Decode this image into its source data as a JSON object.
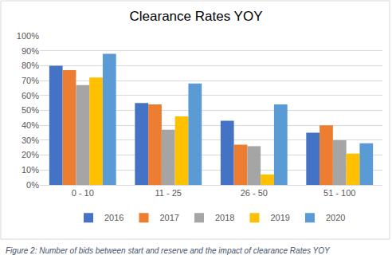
{
  "chart_data": {
    "type": "bar",
    "title": "Clearance Rates YOY",
    "caption": "Figure 2: Number of bids between start and reserve and the impact of clearance Rates YOY",
    "categories": [
      "0 - 10",
      "11 - 25",
      "26 - 50",
      "51 - 100"
    ],
    "series": [
      {
        "name": "2016",
        "color": "#4472c4",
        "values": [
          80,
          55,
          43,
          35
        ]
      },
      {
        "name": "2017",
        "color": "#ed7d31",
        "values": [
          77,
          54,
          27,
          40
        ]
      },
      {
        "name": "2018",
        "color": "#a5a5a5",
        "values": [
          67,
          37,
          26,
          30
        ]
      },
      {
        "name": "2019",
        "color": "#ffc000",
        "values": [
          72,
          46,
          7,
          21
        ]
      },
      {
        "name": "2020",
        "color": "#5b9bd5",
        "values": [
          88,
          68,
          54,
          28
        ]
      }
    ],
    "ylim": [
      0,
      100
    ],
    "yticks": [
      {
        "value": 0,
        "label": "0%"
      },
      {
        "value": 10,
        "label": "10%"
      },
      {
        "value": 20,
        "label": "20%"
      },
      {
        "value": 30,
        "label": "30%"
      },
      {
        "value": 40,
        "label": "40%"
      },
      {
        "value": 50,
        "label": "50%"
      },
      {
        "value": 60,
        "label": "60%"
      },
      {
        "value": 70,
        "label": "70%"
      },
      {
        "value": 80,
        "label": "80%"
      },
      {
        "value": 90,
        "label": "90%"
      },
      {
        "value": 100,
        "label": "100%"
      }
    ],
    "grid": true,
    "legend": "bottom"
  }
}
